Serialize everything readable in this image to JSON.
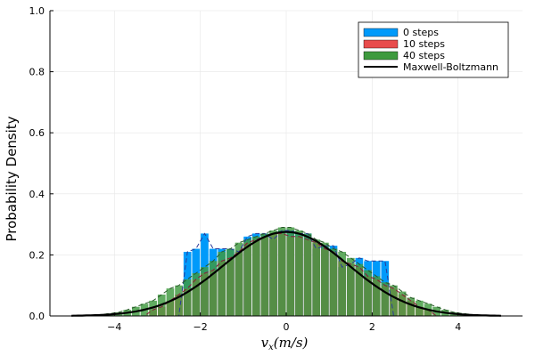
{
  "chart_data": {
    "type": "bar",
    "title": "",
    "xlabel": "v_x(m/s)",
    "xlabel_parts": {
      "main": "v",
      "sub": "x",
      "rest": "(m/s)"
    },
    "ylabel": "Probability Density",
    "xlim": [
      -5.5,
      5.5
    ],
    "ylim": [
      0,
      1.0
    ],
    "x_ticks": [
      -4,
      -2,
      0,
      2,
      4
    ],
    "x_tick_labels": [
      "−4",
      "−2",
      "0",
      "2",
      "4"
    ],
    "y_ticks": [
      0,
      0.2,
      0.4,
      0.6,
      0.8,
      1.0
    ],
    "y_tick_labels": [
      "0.0",
      "0.2",
      "0.4",
      "0.6",
      "0.8",
      "1.0"
    ],
    "grid": true,
    "legend_position": "top-right",
    "bin_width": 0.2,
    "x": [
      -4.9,
      -4.7,
      -4.5,
      -4.3,
      -4.1,
      -3.9,
      -3.7,
      -3.5,
      -3.3,
      -3.1,
      -2.9,
      -2.7,
      -2.5,
      -2.3,
      -2.1,
      -1.9,
      -1.7,
      -1.5,
      -1.3,
      -1.1,
      -0.9,
      -0.7,
      -0.5,
      -0.3,
      -0.1,
      0.1,
      0.3,
      0.5,
      0.7,
      0.9,
      1.1,
      1.3,
      1.5,
      1.7,
      1.9,
      2.1,
      2.3,
      2.5,
      2.7,
      2.9,
      3.1,
      3.3,
      3.5,
      3.7,
      3.9,
      4.1,
      4.3,
      4.5,
      4.7,
      4.9
    ],
    "series": [
      {
        "name": "0 steps",
        "color": "#009AFA",
        "values": [
          0,
          0,
          0,
          0,
          0,
          0,
          0,
          0,
          0,
          0,
          0,
          0,
          0,
          0.21,
          0.22,
          0.27,
          0.22,
          0.22,
          0.22,
          0.21,
          0.26,
          0.27,
          0.27,
          0.25,
          0.28,
          0.28,
          0.27,
          0.27,
          0.22,
          0.23,
          0.23,
          0.16,
          0.17,
          0.19,
          0.18,
          0.18,
          0.18,
          0,
          0,
          0,
          0,
          0,
          0,
          0,
          0,
          0,
          0,
          0,
          0,
          0
        ]
      },
      {
        "name": "10 steps",
        "color": "#E84C4C",
        "values": [
          0,
          0,
          0,
          0,
          0,
          0,
          0,
          0,
          0,
          0.02,
          0.03,
          0.05,
          0.07,
          0.09,
          0.12,
          0.14,
          0.15,
          0.18,
          0.19,
          0.21,
          0.24,
          0.25,
          0.26,
          0.27,
          0.27,
          0.26,
          0.26,
          0.25,
          0.24,
          0.22,
          0.21,
          0.18,
          0.17,
          0.16,
          0.13,
          0.12,
          0.1,
          0.09,
          0.07,
          0.05,
          0.03,
          0.02,
          0,
          0,
          0,
          0,
          0,
          0,
          0,
          0
        ]
      },
      {
        "name": "40 steps",
        "color": "#3E9A3E",
        "values": [
          0,
          0,
          0,
          0.005,
          0.008,
          0.012,
          0.02,
          0.03,
          0.04,
          0.05,
          0.07,
          0.09,
          0.1,
          0.12,
          0.14,
          0.16,
          0.18,
          0.21,
          0.22,
          0.24,
          0.25,
          0.26,
          0.27,
          0.28,
          0.29,
          0.29,
          0.28,
          0.27,
          0.25,
          0.24,
          0.22,
          0.21,
          0.19,
          0.17,
          0.15,
          0.13,
          0.11,
          0.1,
          0.08,
          0.06,
          0.05,
          0.04,
          0.03,
          0.02,
          0.012,
          0.008,
          0.005,
          0,
          0,
          0
        ]
      }
    ],
    "curve": {
      "name": "Maxwell-Boltzmann",
      "color": "#000000",
      "sigma": 1.45
    }
  }
}
